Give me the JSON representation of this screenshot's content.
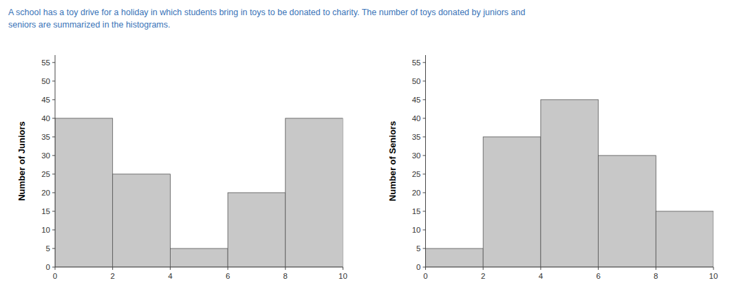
{
  "chart_data": [
    {
      "type": "histogram",
      "annotations": [
        "A school has a toy drive for a holiday in which students bring in toys to be donated to charity. The number of toys donated by juniors and",
        "seniors are summarized in the histograms."
      ],
      "ylabel": "Number of Juniors",
      "bins": [
        0,
        2,
        4,
        6,
        8,
        10
      ],
      "values": [
        40,
        25,
        5,
        20,
        40
      ],
      "color": "#c8c8c8",
      "xlim": [
        0,
        10
      ],
      "xticks": [
        0,
        2,
        4,
        6,
        8,
        10
      ],
      "ylim": [
        0,
        57
      ],
      "yticks": [
        0,
        5,
        10,
        15,
        20,
        25,
        30,
        35,
        40,
        45,
        50,
        55
      ],
      "grid": false
    },
    {
      "type": "histogram",
      "ylabel": "Number of Seniors",
      "bins": [
        0,
        2,
        4,
        6,
        8,
        10
      ],
      "values": [
        5,
        35,
        45,
        30,
        15
      ],
      "color": "#c8c8c8",
      "xlim": [
        0,
        10
      ],
      "xticks": [
        0,
        2,
        4,
        6,
        8,
        10
      ],
      "ylim": [
        0,
        57
      ],
      "yticks": [
        0,
        5,
        10,
        15,
        20,
        25,
        30,
        35,
        40,
        45,
        50,
        55
      ],
      "grid": false
    }
  ]
}
